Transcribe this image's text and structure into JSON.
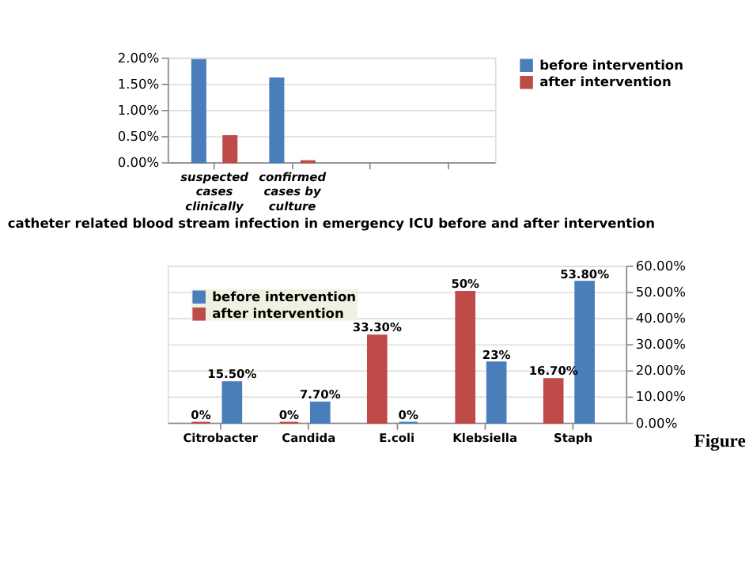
{
  "chart_data": [
    {
      "type": "bar",
      "title": "catheter related blood stream infection in emergency ICU before and after intervention",
      "categories": [
        "suspected cases clinically",
        "confirmed cases by culture",
        null,
        null
      ],
      "series": [
        {
          "name": "before intervention",
          "color": "#4a7ebb",
          "values": [
            1.95,
            1.6,
            null,
            null
          ]
        },
        {
          "name": "after intervention",
          "color": "#be4b48",
          "values": [
            0.5,
            0.02,
            null,
            null
          ]
        }
      ],
      "ylim": [
        0,
        2
      ],
      "yticks": [
        {
          "value": 0,
          "label": "0.00%"
        },
        {
          "value": 0.5,
          "label": "0.50%"
        },
        {
          "value": 1,
          "label": "1.00%"
        },
        {
          "value": 1.5,
          "label": "1.50%"
        },
        {
          "value": 2,
          "label": "2.00%"
        }
      ],
      "grid": "y",
      "legend": "right"
    },
    {
      "type": "bar",
      "categories": [
        "Citrobacter",
        "Candida",
        "E.coli",
        "Klebsiella",
        "Staph"
      ],
      "series": [
        {
          "name": "before intervention",
          "color": "#4a7ebb",
          "values": [
            15.5,
            7.7,
            0,
            23,
            53.8
          ],
          "value_labels": [
            "15.50%",
            "7.70%",
            "0%",
            "23%",
            "53.80%"
          ]
        },
        {
          "name": "after intervention",
          "color": "#be4b48",
          "values": [
            0,
            0,
            33.3,
            50,
            16.7
          ],
          "value_labels": [
            "0%",
            "0%",
            "33.30%",
            "50%",
            "16.70%"
          ]
        }
      ],
      "ylim": [
        0,
        60
      ],
      "yticks": [
        {
          "value": 0,
          "label": "0.00%"
        },
        {
          "value": 10,
          "label": "10.00%"
        },
        {
          "value": 20,
          "label": "20.00%"
        },
        {
          "value": 30,
          "label": "30.00%"
        },
        {
          "value": 40,
          "label": "40.00%"
        },
        {
          "value": 50,
          "label": "50.00%"
        },
        {
          "value": 60,
          "label": "60.00%"
        }
      ],
      "grid": "y",
      "legend": "top left",
      "annotations": [
        "Figure"
      ]
    }
  ]
}
